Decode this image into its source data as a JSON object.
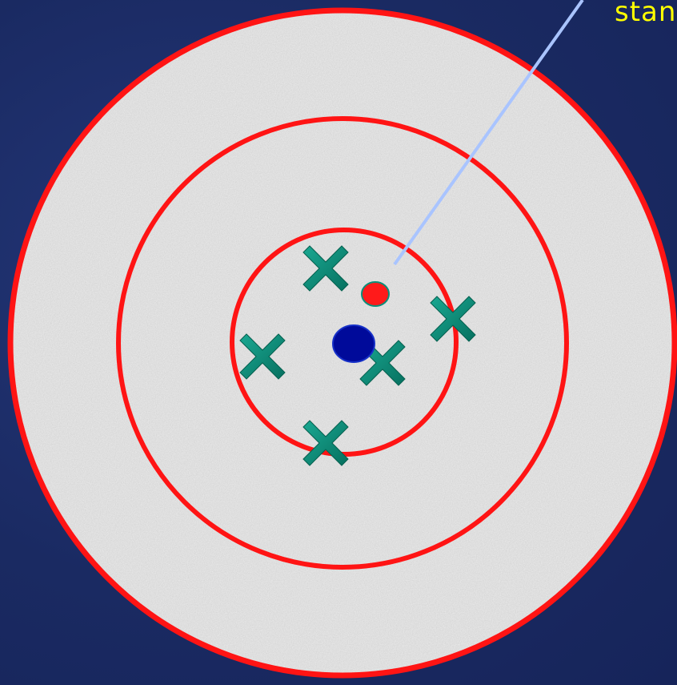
{
  "diagram": {
    "callout_text": "stan",
    "colors": {
      "background": "#1b2a5e",
      "target_face": "#e9e9e9",
      "ring": "#ff0000",
      "marks": "#0a8f7a",
      "true_center_dot": "#000a9a",
      "estimate_dot": "#ff1a1a",
      "callout_line": "#a9c4ff",
      "callout_text": "#ffff00"
    },
    "target_rings": 3,
    "marks": [
      "x-mark",
      "x-mark",
      "x-mark",
      "x-mark",
      "x-mark"
    ],
    "dots": [
      "true-center",
      "mean-estimate"
    ]
  }
}
